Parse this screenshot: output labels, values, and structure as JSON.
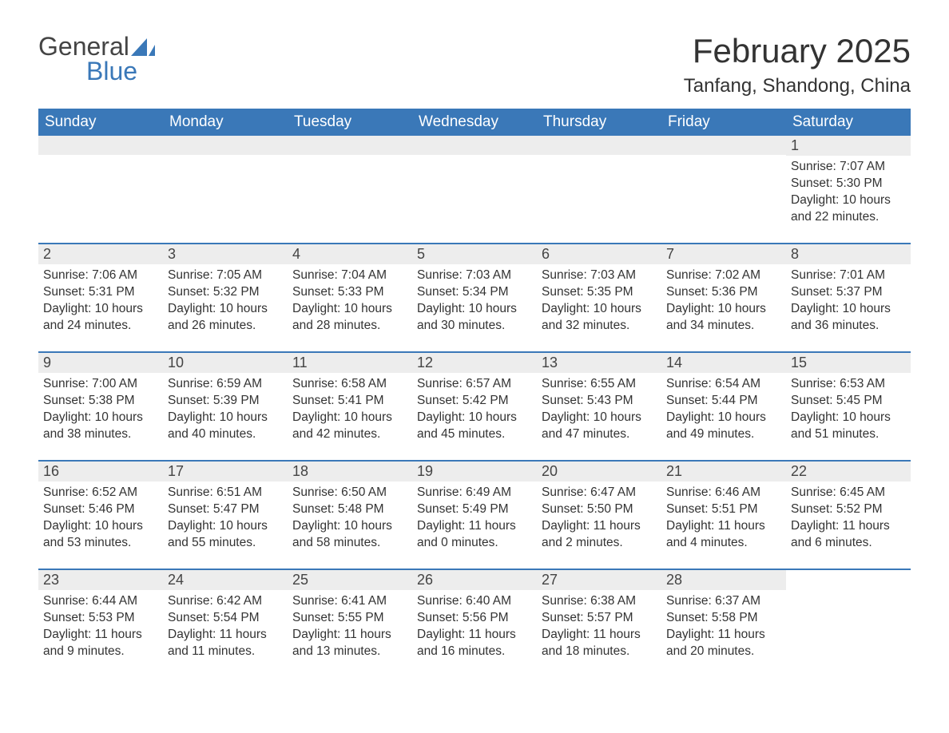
{
  "logo": {
    "text1": "General",
    "text2": "Blue",
    "icon_color": "#3a78b8"
  },
  "title": "February 2025",
  "location": "Tanfang, Shandong, China",
  "colors": {
    "header_bg": "#3a78b8",
    "header_text": "#ffffff",
    "row_separator": "#3a78b8",
    "day_number_bg": "#ededed",
    "text": "#333333",
    "background": "#ffffff"
  },
  "typography": {
    "title_fontsize": 42,
    "location_fontsize": 24,
    "weekday_fontsize": 19,
    "daynum_fontsize": 18,
    "detail_fontsize": 15.5
  },
  "weekdays": [
    "Sunday",
    "Monday",
    "Tuesday",
    "Wednesday",
    "Thursday",
    "Friday",
    "Saturday"
  ],
  "weeks": [
    [
      null,
      null,
      null,
      null,
      null,
      null,
      {
        "n": "1",
        "sunrise": "Sunrise: 7:07 AM",
        "sunset": "Sunset: 5:30 PM",
        "daylight1": "Daylight: 10 hours",
        "daylight2": "and 22 minutes."
      }
    ],
    [
      {
        "n": "2",
        "sunrise": "Sunrise: 7:06 AM",
        "sunset": "Sunset: 5:31 PM",
        "daylight1": "Daylight: 10 hours",
        "daylight2": "and 24 minutes."
      },
      {
        "n": "3",
        "sunrise": "Sunrise: 7:05 AM",
        "sunset": "Sunset: 5:32 PM",
        "daylight1": "Daylight: 10 hours",
        "daylight2": "and 26 minutes."
      },
      {
        "n": "4",
        "sunrise": "Sunrise: 7:04 AM",
        "sunset": "Sunset: 5:33 PM",
        "daylight1": "Daylight: 10 hours",
        "daylight2": "and 28 minutes."
      },
      {
        "n": "5",
        "sunrise": "Sunrise: 7:03 AM",
        "sunset": "Sunset: 5:34 PM",
        "daylight1": "Daylight: 10 hours",
        "daylight2": "and 30 minutes."
      },
      {
        "n": "6",
        "sunrise": "Sunrise: 7:03 AM",
        "sunset": "Sunset: 5:35 PM",
        "daylight1": "Daylight: 10 hours",
        "daylight2": "and 32 minutes."
      },
      {
        "n": "7",
        "sunrise": "Sunrise: 7:02 AM",
        "sunset": "Sunset: 5:36 PM",
        "daylight1": "Daylight: 10 hours",
        "daylight2": "and 34 minutes."
      },
      {
        "n": "8",
        "sunrise": "Sunrise: 7:01 AM",
        "sunset": "Sunset: 5:37 PM",
        "daylight1": "Daylight: 10 hours",
        "daylight2": "and 36 minutes."
      }
    ],
    [
      {
        "n": "9",
        "sunrise": "Sunrise: 7:00 AM",
        "sunset": "Sunset: 5:38 PM",
        "daylight1": "Daylight: 10 hours",
        "daylight2": "and 38 minutes."
      },
      {
        "n": "10",
        "sunrise": "Sunrise: 6:59 AM",
        "sunset": "Sunset: 5:39 PM",
        "daylight1": "Daylight: 10 hours",
        "daylight2": "and 40 minutes."
      },
      {
        "n": "11",
        "sunrise": "Sunrise: 6:58 AM",
        "sunset": "Sunset: 5:41 PM",
        "daylight1": "Daylight: 10 hours",
        "daylight2": "and 42 minutes."
      },
      {
        "n": "12",
        "sunrise": "Sunrise: 6:57 AM",
        "sunset": "Sunset: 5:42 PM",
        "daylight1": "Daylight: 10 hours",
        "daylight2": "and 45 minutes."
      },
      {
        "n": "13",
        "sunrise": "Sunrise: 6:55 AM",
        "sunset": "Sunset: 5:43 PM",
        "daylight1": "Daylight: 10 hours",
        "daylight2": "and 47 minutes."
      },
      {
        "n": "14",
        "sunrise": "Sunrise: 6:54 AM",
        "sunset": "Sunset: 5:44 PM",
        "daylight1": "Daylight: 10 hours",
        "daylight2": "and 49 minutes."
      },
      {
        "n": "15",
        "sunrise": "Sunrise: 6:53 AM",
        "sunset": "Sunset: 5:45 PM",
        "daylight1": "Daylight: 10 hours",
        "daylight2": "and 51 minutes."
      }
    ],
    [
      {
        "n": "16",
        "sunrise": "Sunrise: 6:52 AM",
        "sunset": "Sunset: 5:46 PM",
        "daylight1": "Daylight: 10 hours",
        "daylight2": "and 53 minutes."
      },
      {
        "n": "17",
        "sunrise": "Sunrise: 6:51 AM",
        "sunset": "Sunset: 5:47 PM",
        "daylight1": "Daylight: 10 hours",
        "daylight2": "and 55 minutes."
      },
      {
        "n": "18",
        "sunrise": "Sunrise: 6:50 AM",
        "sunset": "Sunset: 5:48 PM",
        "daylight1": "Daylight: 10 hours",
        "daylight2": "and 58 minutes."
      },
      {
        "n": "19",
        "sunrise": "Sunrise: 6:49 AM",
        "sunset": "Sunset: 5:49 PM",
        "daylight1": "Daylight: 11 hours",
        "daylight2": "and 0 minutes."
      },
      {
        "n": "20",
        "sunrise": "Sunrise: 6:47 AM",
        "sunset": "Sunset: 5:50 PM",
        "daylight1": "Daylight: 11 hours",
        "daylight2": "and 2 minutes."
      },
      {
        "n": "21",
        "sunrise": "Sunrise: 6:46 AM",
        "sunset": "Sunset: 5:51 PM",
        "daylight1": "Daylight: 11 hours",
        "daylight2": "and 4 minutes."
      },
      {
        "n": "22",
        "sunrise": "Sunrise: 6:45 AM",
        "sunset": "Sunset: 5:52 PM",
        "daylight1": "Daylight: 11 hours",
        "daylight2": "and 6 minutes."
      }
    ],
    [
      {
        "n": "23",
        "sunrise": "Sunrise: 6:44 AM",
        "sunset": "Sunset: 5:53 PM",
        "daylight1": "Daylight: 11 hours",
        "daylight2": "and 9 minutes."
      },
      {
        "n": "24",
        "sunrise": "Sunrise: 6:42 AM",
        "sunset": "Sunset: 5:54 PM",
        "daylight1": "Daylight: 11 hours",
        "daylight2": "and 11 minutes."
      },
      {
        "n": "25",
        "sunrise": "Sunrise: 6:41 AM",
        "sunset": "Sunset: 5:55 PM",
        "daylight1": "Daylight: 11 hours",
        "daylight2": "and 13 minutes."
      },
      {
        "n": "26",
        "sunrise": "Sunrise: 6:40 AM",
        "sunset": "Sunset: 5:56 PM",
        "daylight1": "Daylight: 11 hours",
        "daylight2": "and 16 minutes."
      },
      {
        "n": "27",
        "sunrise": "Sunrise: 6:38 AM",
        "sunset": "Sunset: 5:57 PM",
        "daylight1": "Daylight: 11 hours",
        "daylight2": "and 18 minutes."
      },
      {
        "n": "28",
        "sunrise": "Sunrise: 6:37 AM",
        "sunset": "Sunset: 5:58 PM",
        "daylight1": "Daylight: 11 hours",
        "daylight2": "and 20 minutes."
      },
      null
    ]
  ]
}
